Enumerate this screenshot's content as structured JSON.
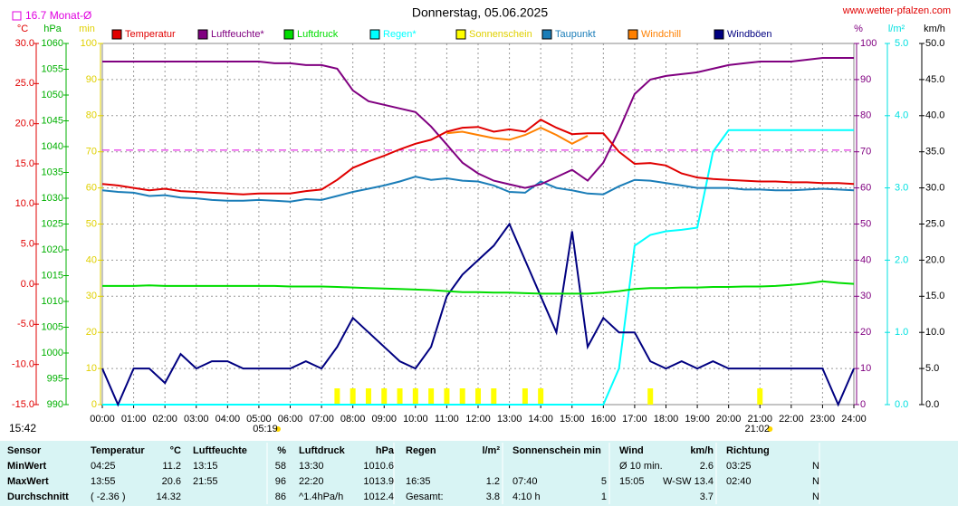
{
  "chart_data": {
    "type": "line",
    "title": "Donnerstag, 05.06.2025",
    "site": "www.wetter-pfalzen.com",
    "monthly_avg": {
      "label": "16.7 Monat-Ø",
      "value": 16.7,
      "color": "#e000e0",
      "axis": "temp"
    },
    "update_time": "15:42",
    "sunrise": {
      "label": "05:19",
      "value": 5.32
    },
    "sunset": {
      "label": "21:02",
      "value": 21.03
    },
    "grid": true,
    "axes": {
      "temp": {
        "label": "°C",
        "color": "#e00000",
        "lim": [
          -15,
          30
        ],
        "ticks": [
          {
            "value": 30,
            "label": "30.0"
          },
          {
            "value": 25,
            "label": "25.0"
          },
          {
            "value": 20,
            "label": "20.0"
          },
          {
            "value": 15,
            "label": "15.0"
          },
          {
            "value": 10,
            "label": "10.0"
          },
          {
            "value": 5,
            "label": "5.0"
          },
          {
            "value": 0,
            "label": "0.0"
          },
          {
            "value": -5,
            "label": "-5.0"
          },
          {
            "value": -10,
            "label": "-10.0"
          },
          {
            "value": -15,
            "label": "-15.0"
          }
        ]
      },
      "pressure": {
        "label": "hPa",
        "color": "#00b000",
        "lim": [
          990,
          1060
        ],
        "ticks": [
          1060,
          1055,
          1050,
          1045,
          1040,
          1035,
          1030,
          1025,
          1020,
          1015,
          1010,
          1005,
          1000,
          995,
          990
        ]
      },
      "min": {
        "label": "min",
        "color": "#e0d000",
        "lim": [
          0,
          100
        ],
        "ticks": [
          100,
          90,
          80,
          70,
          60,
          50,
          40,
          30,
          20,
          10,
          0
        ]
      },
      "humidity": {
        "label": "%",
        "color": "#800080",
        "lim": [
          0,
          100
        ],
        "ticks": [
          100,
          90,
          80,
          70,
          60,
          50,
          40,
          30,
          20,
          10,
          0
        ]
      },
      "rain": {
        "label": "l/m²",
        "color": "#00e0e0",
        "lim": [
          0,
          5
        ],
        "ticks": [
          {
            "value": 5,
            "label": "5.0"
          },
          {
            "value": 4,
            "label": "4.0"
          },
          {
            "value": 3,
            "label": "3.0"
          },
          {
            "value": 2,
            "label": "2.0"
          },
          {
            "value": 1,
            "label": "1.0"
          },
          {
            "value": 0,
            "label": "0.0"
          }
        ]
      },
      "wind": {
        "label": "km/h",
        "color": "#000000",
        "lim": [
          0,
          50
        ],
        "ticks": [
          {
            "value": 50,
            "label": "50.0"
          },
          {
            "value": 45,
            "label": "45.0"
          },
          {
            "value": 40,
            "label": "40.0"
          },
          {
            "value": 35,
            "label": "35.0"
          },
          {
            "value": 30,
            "label": "30.0"
          },
          {
            "value": 25,
            "label": "25.0"
          },
          {
            "value": 20,
            "label": "20.0"
          },
          {
            "value": 15,
            "label": "15.0"
          },
          {
            "value": 10,
            "label": "10.0"
          },
          {
            "value": 5,
            "label": "5.0"
          },
          {
            "value": 0,
            "label": "0.0"
          }
        ]
      }
    },
    "xlim": [
      0,
      24
    ],
    "xticks": [
      {
        "value": 0,
        "label": "00:00"
      },
      {
        "value": 1,
        "label": "01:00"
      },
      {
        "value": 2,
        "label": "02:00"
      },
      {
        "value": 3,
        "label": "03:00"
      },
      {
        "value": 4,
        "label": "04:00"
      },
      {
        "value": 5,
        "label": "05:00"
      },
      {
        "value": 6,
        "label": "06:00"
      },
      {
        "value": 7,
        "label": "07:00"
      },
      {
        "value": 8,
        "label": "08:00"
      },
      {
        "value": 9,
        "label": "09:00"
      },
      {
        "value": 10,
        "label": "10:00"
      },
      {
        "value": 11,
        "label": "11:00"
      },
      {
        "value": 12,
        "label": "12:00"
      },
      {
        "value": 13,
        "label": "13:00"
      },
      {
        "value": 14,
        "label": "14:00"
      },
      {
        "value": 15,
        "label": "15:00"
      },
      {
        "value": 16,
        "label": "16:00"
      },
      {
        "value": 17,
        "label": "17:00"
      },
      {
        "value": 18,
        "label": "18:00"
      },
      {
        "value": 19,
        "label": "19:00"
      },
      {
        "value": 20,
        "label": "20:00"
      },
      {
        "value": 21,
        "label": "21:00"
      },
      {
        "value": 22,
        "label": "22:00"
      },
      {
        "value": 23,
        "label": "23:00"
      },
      {
        "value": 24,
        "label": "24:00"
      }
    ],
    "x": [
      0,
      0.5,
      1,
      1.5,
      2,
      2.5,
      3,
      3.5,
      4,
      4.5,
      5,
      5.5,
      6,
      6.5,
      7,
      7.5,
      8,
      8.5,
      9,
      9.5,
      10,
      10.5,
      11,
      11.5,
      12,
      12.5,
      13,
      13.5,
      14,
      14.5,
      15,
      15.5,
      16,
      16.5,
      17,
      17.5,
      18,
      18.5,
      19,
      19.5,
      20,
      20.5,
      21,
      21.5,
      22,
      22.5,
      23,
      23.5,
      24
    ],
    "series": [
      {
        "name": "Temperatur",
        "color": "#e00000",
        "axis": "temp",
        "values": [
          12.5,
          12.3,
          12.0,
          11.7,
          11.9,
          11.6,
          11.5,
          11.4,
          11.3,
          11.2,
          11.3,
          11.3,
          11.3,
          11.6,
          11.8,
          13.0,
          14.5,
          15.3,
          16.0,
          16.8,
          17.5,
          18.0,
          19.0,
          19.5,
          19.6,
          19.0,
          19.3,
          19.0,
          20.5,
          19.5,
          18.7,
          18.8,
          18.8,
          16.5,
          15.0,
          15.1,
          14.8,
          13.8,
          13.3,
          13.1,
          13.0,
          12.9,
          12.8,
          12.8,
          12.7,
          12.7,
          12.6,
          12.6,
          12.5
        ]
      },
      {
        "name": "Luftfeuchte*",
        "color": "#800080",
        "axis": "humidity",
        "values": [
          95,
          95,
          95,
          95,
          95,
          95,
          95,
          95,
          95,
          95,
          95,
          94.5,
          94.5,
          94,
          94,
          93,
          87,
          84,
          83,
          82,
          81,
          77,
          72,
          67,
          64,
          62,
          61,
          60,
          61,
          63,
          65,
          62,
          67,
          76,
          86,
          90,
          91,
          91.5,
          92,
          93,
          94,
          94.5,
          95,
          95,
          95,
          95.5,
          96,
          96,
          96
        ]
      },
      {
        "name": "Luftdruck",
        "color": "#00dd00",
        "axis": "pressure",
        "values": [
          1013,
          1013,
          1013,
          1013.1,
          1013,
          1013,
          1013,
          1013,
          1013,
          1013,
          1013,
          1013,
          1012.9,
          1012.9,
          1012.9,
          1012.8,
          1012.7,
          1012.6,
          1012.5,
          1012.4,
          1012.3,
          1012.2,
          1012.0,
          1011.8,
          1011.8,
          1011.7,
          1011.7,
          1011.6,
          1011.5,
          1011.5,
          1011.5,
          1011.5,
          1011.7,
          1012.0,
          1012.4,
          1012.6,
          1012.6,
          1012.7,
          1012.7,
          1012.8,
          1012.8,
          1012.9,
          1012.9,
          1013.0,
          1013.2,
          1013.5,
          1013.9,
          1013.6,
          1013.4
        ]
      },
      {
        "name": "Regen*",
        "color": "#00ffff",
        "axis": "rain",
        "values": [
          0,
          0,
          0,
          0,
          0,
          0,
          0,
          0,
          0,
          0,
          0,
          0,
          0,
          0,
          0,
          0,
          0,
          0,
          0,
          0,
          0,
          0,
          0,
          0,
          0,
          0,
          0,
          0,
          0,
          0,
          0,
          0,
          0,
          0.5,
          2.2,
          2.35,
          2.4,
          2.42,
          2.45,
          3.5,
          3.8,
          3.8,
          3.8,
          3.8,
          3.8,
          3.8,
          3.8,
          3.8,
          3.8
        ]
      },
      {
        "name": "Sonnenschein",
        "color": "#ffff00",
        "axis": "min",
        "style": "bar",
        "values": [
          0,
          0,
          0,
          0,
          0,
          0,
          0,
          0,
          0,
          0,
          0,
          0,
          0,
          0,
          0,
          4.5,
          4.5,
          4.5,
          4.5,
          4.5,
          4.5,
          4.5,
          4.5,
          4.5,
          4.5,
          4.5,
          0,
          4.5,
          4.5,
          0,
          0,
          0,
          0,
          0,
          0,
          4.5,
          0,
          0,
          0,
          0,
          0,
          0,
          4.5,
          0,
          0,
          0,
          0,
          0,
          0
        ]
      },
      {
        "name": "Taupunkt",
        "color": "#1a7db8",
        "axis": "temp",
        "values": [
          11.7,
          11.5,
          11.4,
          11.0,
          11.1,
          10.8,
          10.7,
          10.5,
          10.4,
          10.4,
          10.5,
          10.4,
          10.3,
          10.6,
          10.5,
          11.0,
          11.5,
          11.9,
          12.3,
          12.8,
          13.4,
          13.0,
          13.2,
          12.9,
          12.8,
          12.3,
          11.5,
          11.4,
          12.8,
          12.0,
          11.7,
          11.3,
          11.2,
          12.2,
          13.0,
          12.9,
          12.6,
          12.3,
          12.0,
          12.0,
          12.0,
          11.8,
          11.8,
          11.7,
          11.7,
          11.8,
          11.9,
          11.8,
          11.7
        ]
      },
      {
        "name": "Windchill",
        "color": "#ff8000",
        "axis": "temp",
        "values": [
          null,
          null,
          null,
          null,
          null,
          null,
          null,
          null,
          null,
          null,
          null,
          null,
          null,
          null,
          null,
          null,
          null,
          null,
          null,
          null,
          null,
          null,
          18.8,
          19.0,
          18.6,
          18.2,
          18.0,
          18.6,
          19.5,
          18.6,
          17.5,
          18.5,
          null,
          null,
          null,
          null,
          null,
          null,
          null,
          null,
          null,
          null,
          null,
          null,
          null,
          null,
          null,
          null,
          null
        ]
      },
      {
        "name": "Windböen",
        "color": "#000080",
        "axis": "wind",
        "values": [
          5,
          0,
          5,
          5,
          3,
          7,
          5,
          6,
          6,
          5,
          5,
          5,
          5,
          6,
          5,
          8,
          12,
          10,
          8,
          6,
          5,
          8,
          15,
          18,
          20,
          22,
          25,
          20,
          15,
          10,
          24,
          8,
          12,
          10,
          10,
          6,
          5,
          6,
          5,
          6,
          5,
          5,
          5,
          5,
          5,
          5,
          5,
          0,
          5
        ]
      }
    ]
  },
  "table": {
    "header": [
      "Sensor",
      "Temperatur",
      "°C",
      "Luftfeuchte",
      "%",
      "Luftdruck",
      "hPa",
      "Regen",
      "l/m²",
      "Sonnenschein min",
      null,
      "Wind",
      "km/h",
      "Richtung",
      null
    ],
    "rows": [
      [
        "MinWert",
        "04:25",
        "11.2",
        "13:15",
        "58",
        "13:30",
        "1010.6",
        null,
        null,
        null,
        null,
        "Ø 10 min.",
        "2.6",
        "03:25",
        "N"
      ],
      [
        "MaxWert",
        "13:55",
        "20.6",
        "21:55",
        "96",
        "22:20",
        "1013.9",
        "16:35",
        "1.2",
        "07:40",
        "5",
        "15:05",
        "W-SW 13.4",
        "02:40",
        "N"
      ],
      [
        "Durchschnitt",
        "( -2.36 )",
        "14.32",
        null,
        "86",
        "^1.4hPa/h",
        "1012.4",
        "Gesamt:",
        "3.8",
        "4:10 h",
        "1",
        null,
        "3.7",
        null,
        "N"
      ]
    ]
  }
}
